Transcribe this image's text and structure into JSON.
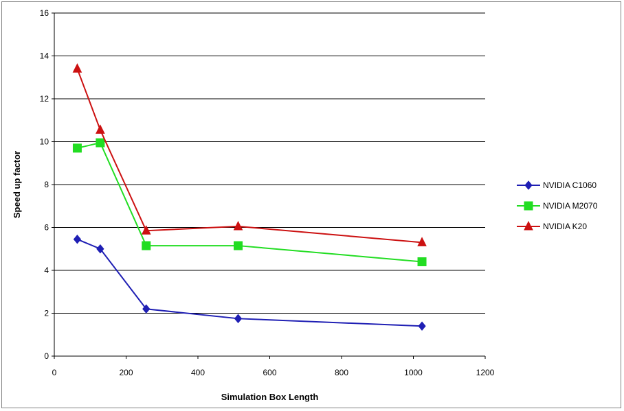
{
  "chart_data": {
    "type": "line",
    "xlabel": "Simulation Box Length",
    "ylabel": "Speed up factor",
    "xlim": [
      0,
      1200
    ],
    "ylim": [
      0,
      16
    ],
    "x_ticks": [
      "0",
      "200",
      "400",
      "600",
      "800",
      "1000",
      "1200"
    ],
    "y_ticks": [
      "0",
      "2",
      "4",
      "6",
      "8",
      "10",
      "12",
      "14",
      "16"
    ],
    "grid": "horizontal",
    "legend_position": "right",
    "series": [
      {
        "name": "NVIDIA C1060",
        "color": "#1f1fb4",
        "marker": "diamond",
        "x": [
          64,
          128,
          256,
          512,
          1024
        ],
        "y": [
          5.45,
          5.0,
          2.2,
          1.75,
          1.4
        ]
      },
      {
        "name": "NVIDIA M2070",
        "color": "#22dd22",
        "marker": "square",
        "x": [
          64,
          128,
          256,
          512,
          1024
        ],
        "y": [
          9.7,
          9.95,
          5.15,
          5.15,
          4.4
        ]
      },
      {
        "name": "NVIDIA K20",
        "color": "#cc1111",
        "marker": "triangle",
        "x": [
          64,
          128,
          256,
          512,
          1024
        ],
        "y": [
          13.4,
          10.55,
          5.85,
          6.05,
          5.3
        ]
      }
    ]
  }
}
